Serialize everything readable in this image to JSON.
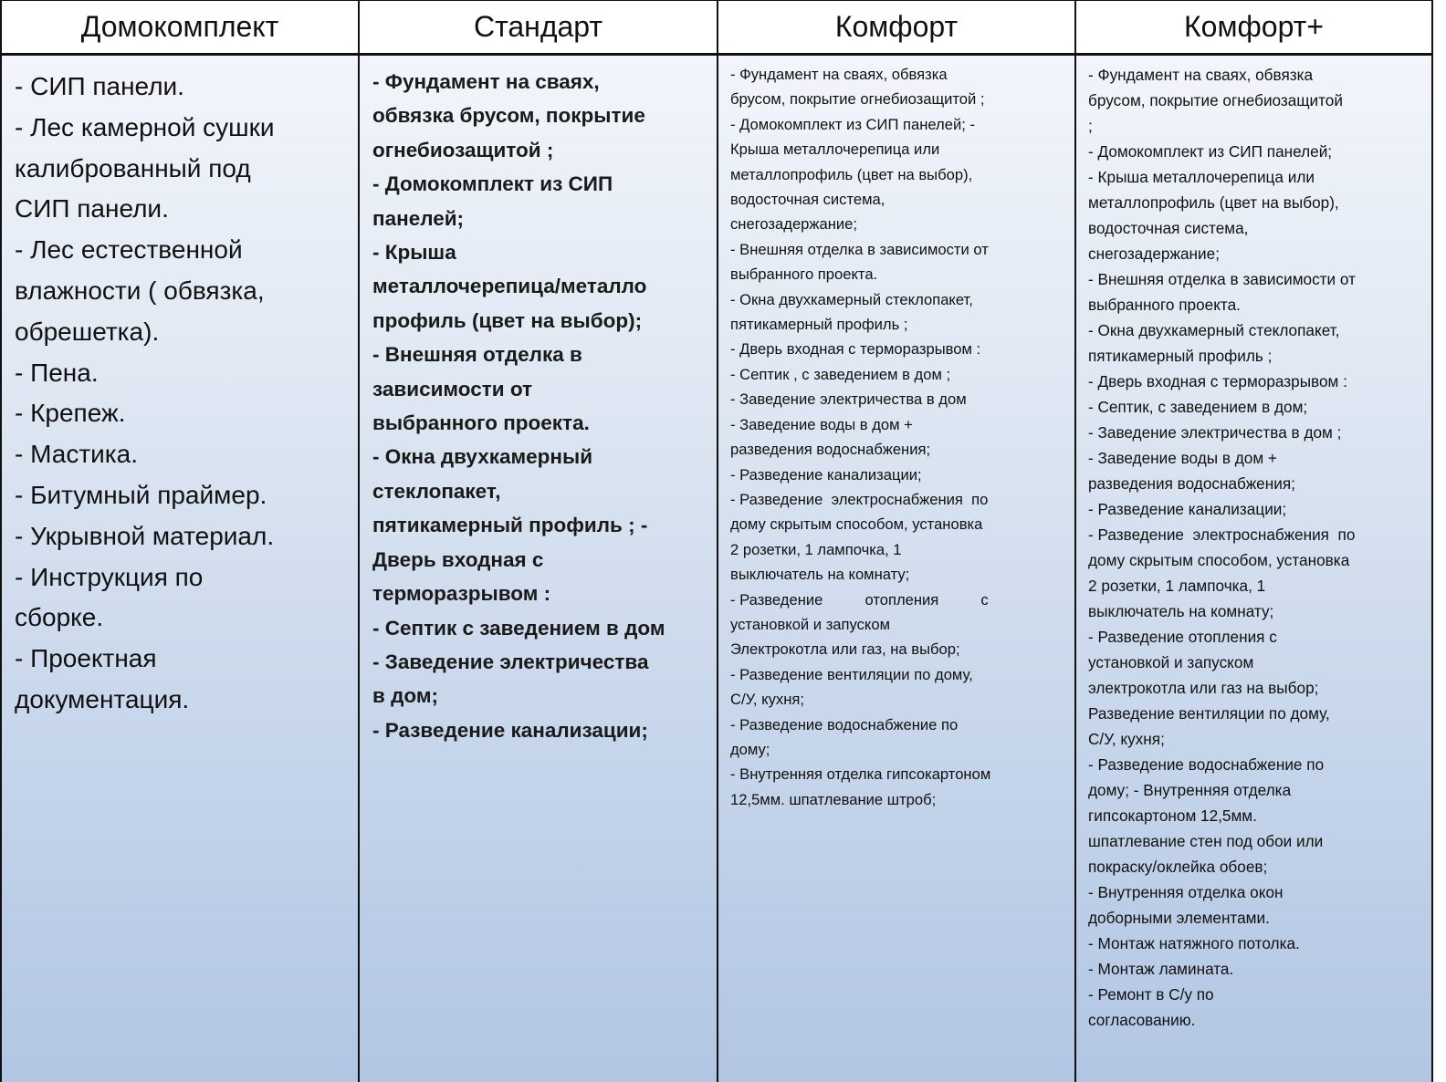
{
  "columns": [
    {
      "title": "Домокомплект",
      "lines": [
        "- СИП панели.",
        "- Лес камерной сушки",
        "калиброванный под",
        "СИП панели.",
        "- Лес естественной",
        "влажности ( обвязка,",
        "обрешетка).",
        "- Пена.",
        "- Крепеж.",
        "- Мастика.",
        "- Битумный праймер.",
        "- Укрывной материал.",
        "- Инструкция по",
        "сборке.",
        "- Проектная",
        "документация."
      ]
    },
    {
      "title": "Стандарт",
      "lines": [
        "- Фундамент на сваях,",
        "обвязка брусом, покрытие",
        "огнебиозащитой ;",
        "- Домокомплект из СИП",
        "панелей;",
        "- Крыша",
        "металлочерепица/металло",
        "профиль (цвет на выбор);",
        "- Внешняя отделка в",
        "зависимости от",
        "выбранного проекта.",
        "- Окна двухкамерный",
        "стеклопакет,",
        "пятикамерный профиль ; -",
        "Дверь входная с",
        "терморазрывом :",
        "- Септик с заведением в дом",
        "- Заведение электричества",
        "в дом;",
        "- Разведение канализации;"
      ]
    },
    {
      "title": "Комфорт",
      "lines": [
        "- Фундамент на сваях, обвязка",
        "брусом, покрытие огнебиозащитой ;",
        "- Домокомплект из СИП панелей; -",
        "Крыша металлочерепица или",
        "металлопрофиль (цвет на выбор),",
        "водосточная система,",
        "снегозадержание;",
        "- Внешняя отделка в зависимости от",
        "выбранного проекта.",
        "- Окна двухкамерный стеклопакет,",
        "пятикамерный профиль ;",
        "- Дверь входная с терморазрывом :",
        "- Септик , с заведением в дом ;",
        "- Заведение электричества в дом",
        "- Заведение воды в дом +",
        "разведения водоснабжения;",
        "- Разведение канализации;",
        "- Разведение  электроснабжения  по",
        "дому скрытым способом, установка",
        "2 розетки, 1 лампочка, 1",
        "выключатель на комнату;",
        "- Разведение          отопления          с",
        "установкой и запуском",
        "Электрокотла или газ, на выбор;",
        "- Разведение вентиляции по дому,",
        "С/У, кухня;",
        "- Разведение водоснабжение по",
        "дому;",
        "- Внутренняя отделка гипсокартоном",
        "12,5мм. шпатлевание штроб;"
      ]
    },
    {
      "title": "Комфорт+",
      "lines": [
        "- Фундамент на сваях, обвязка",
        "брусом, покрытие огнебиозащитой",
        ";",
        "- Домокомплект из СИП панелей;",
        "- Крыша металлочерепица или",
        "металлопрофиль (цвет на выбор),",
        "водосточная система,",
        "снегозадержание;",
        "- Внешняя отделка в зависимости от",
        "выбранного проекта.",
        "- Окна двухкамерный стеклопакет,",
        "пятикамерный профиль ;",
        "- Дверь входная с терморазрывом :",
        "- Септик, с заведением в дом;",
        "- Заведение электричества в дом ;",
        "- Заведение воды в дом +",
        "разведения водоснабжения;",
        "- Разведение канализации;",
        "- Разведение  электроснабжения  по",
        "дому скрытым способом, установка",
        "2 розетки, 1 лампочка, 1",
        "выключатель на комнату;",
        "- Разведение отопления с",
        "установкой и запуском",
        "электрокотла или газ на выбор;",
        "Разведение вентиляции по дому,",
        "С/У, кухня;",
        "- Разведение водоснабжение по",
        "дому; - Внутренняя отделка",
        "гипсокартоном 12,5мм.",
        "шпатлевание стен под обои или",
        "покраску/оклейка обоев;",
        "- Внутренняя отделка окон",
        "доборными элементами.",
        "- Монтаж натяжного потолка.",
        "- Монтаж ламината.",
        "- Ремонт в С/у по",
        "согласованию."
      ]
    }
  ]
}
